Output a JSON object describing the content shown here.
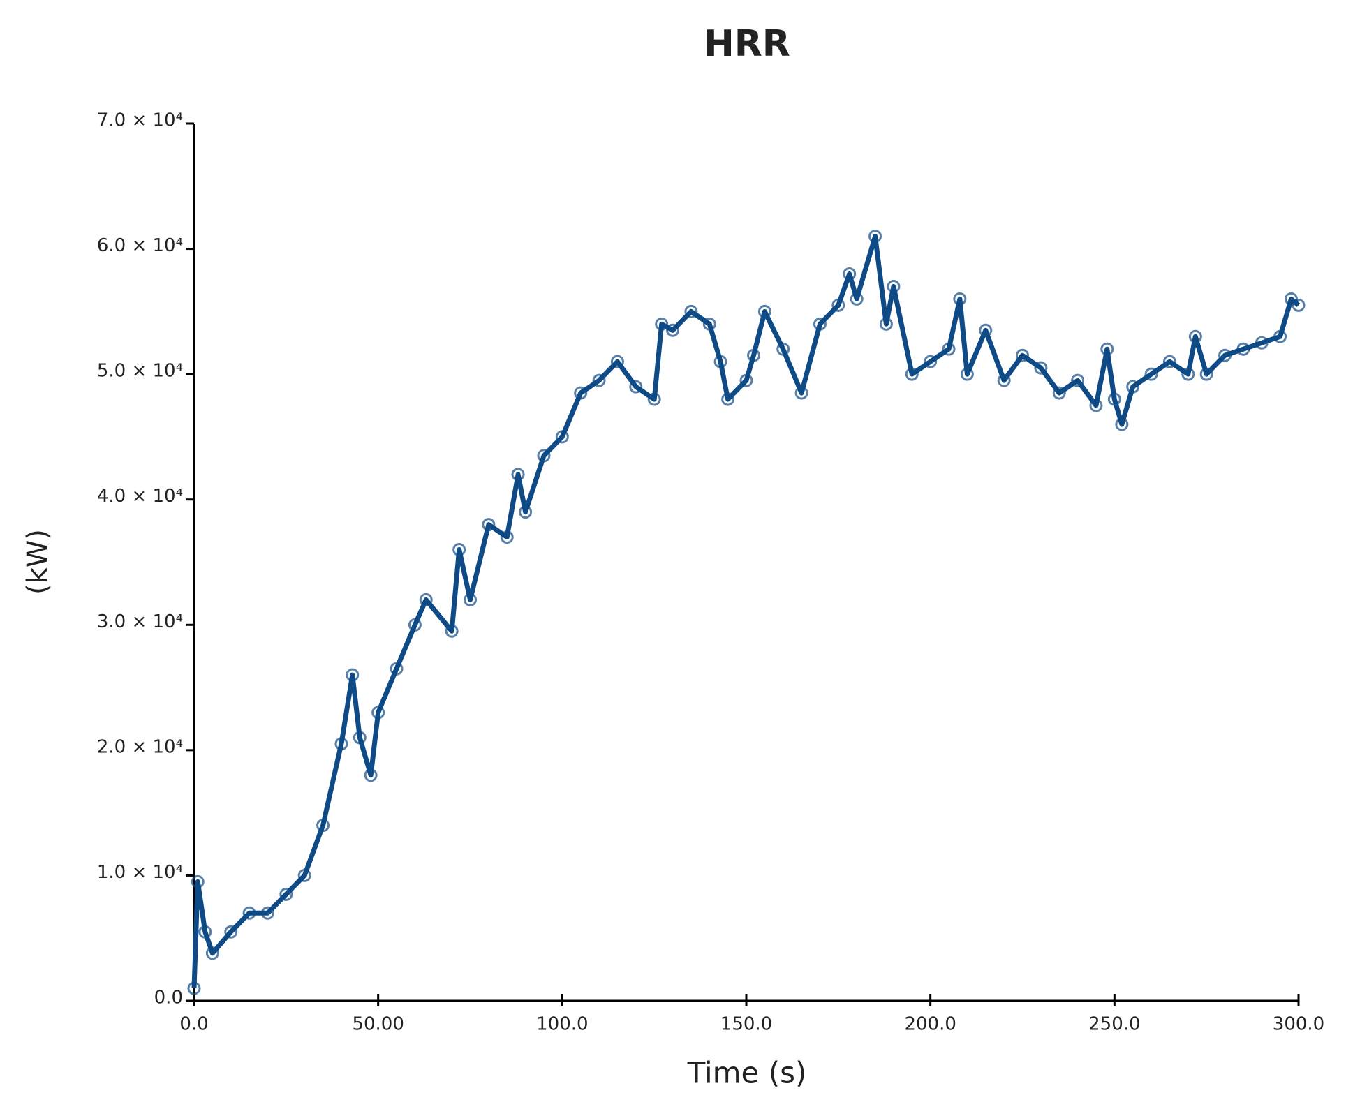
{
  "chart_data": {
    "type": "line",
    "title": "HRR",
    "xlabel": "Time (s)",
    "ylabel": "(kW)",
    "color": "#0e4a86",
    "x": [
      0,
      1,
      3,
      5,
      10,
      15,
      20,
      25,
      30,
      35,
      40,
      43,
      45,
      48,
      50,
      55,
      60,
      63,
      70,
      72,
      75,
      80,
      85,
      88,
      90,
      95,
      100,
      105,
      110,
      115,
      120,
      125,
      127,
      130,
      135,
      140,
      143,
      145,
      150,
      152,
      155,
      160,
      165,
      170,
      175,
      178,
      180,
      185,
      188,
      190,
      195,
      200,
      205,
      208,
      210,
      215,
      220,
      225,
      230,
      235,
      240,
      245,
      248,
      250,
      252,
      255,
      260,
      265,
      270,
      272,
      275,
      280,
      285,
      290,
      295,
      298,
      300
    ],
    "values": [
      1000,
      9500,
      5500,
      3800,
      5500,
      7000,
      7000,
      8500,
      10000,
      14000,
      20500,
      26000,
      21000,
      18000,
      23000,
      26500,
      30000,
      32000,
      29500,
      36000,
      32000,
      38000,
      37000,
      42000,
      39000,
      43500,
      45000,
      48500,
      49500,
      51000,
      49000,
      48000,
      54000,
      53500,
      55000,
      54000,
      51000,
      48000,
      49500,
      51500,
      55000,
      52000,
      48500,
      54000,
      55500,
      58000,
      56000,
      61000,
      54000,
      57000,
      50000,
      51000,
      52000,
      56000,
      50000,
      53500,
      49500,
      51500,
      50500,
      48500,
      49500,
      47500,
      52000,
      48000,
      46000,
      49000,
      50000,
      51000,
      50000,
      53000,
      50000,
      51500,
      52000,
      52500,
      53000,
      56000,
      55500
    ],
    "xlim": [
      0,
      300
    ],
    "xticks": [
      {
        "value": 0,
        "label": "0.0"
      },
      {
        "value": 50,
        "label": "50.00"
      },
      {
        "value": 100,
        "label": "100.0"
      },
      {
        "value": 150,
        "label": "150.0"
      },
      {
        "value": 200,
        "label": "200.0"
      },
      {
        "value": 250,
        "label": "250.0"
      },
      {
        "value": 300,
        "label": "300.0"
      }
    ],
    "ylim": [
      0,
      70000
    ],
    "yticks": [
      {
        "value": 0,
        "label": "0.0"
      },
      {
        "value": 10000,
        "label": "1.0 × 10⁴"
      },
      {
        "value": 20000,
        "label": "2.0 × 10⁴"
      },
      {
        "value": 30000,
        "label": "3.0 × 10⁴"
      },
      {
        "value": 40000,
        "label": "4.0 × 10⁴"
      },
      {
        "value": 50000,
        "label": "5.0 × 10⁴"
      },
      {
        "value": 60000,
        "label": "6.0 × 10⁴"
      },
      {
        "value": 70000,
        "label": "7.0 × 10⁴"
      }
    ]
  }
}
